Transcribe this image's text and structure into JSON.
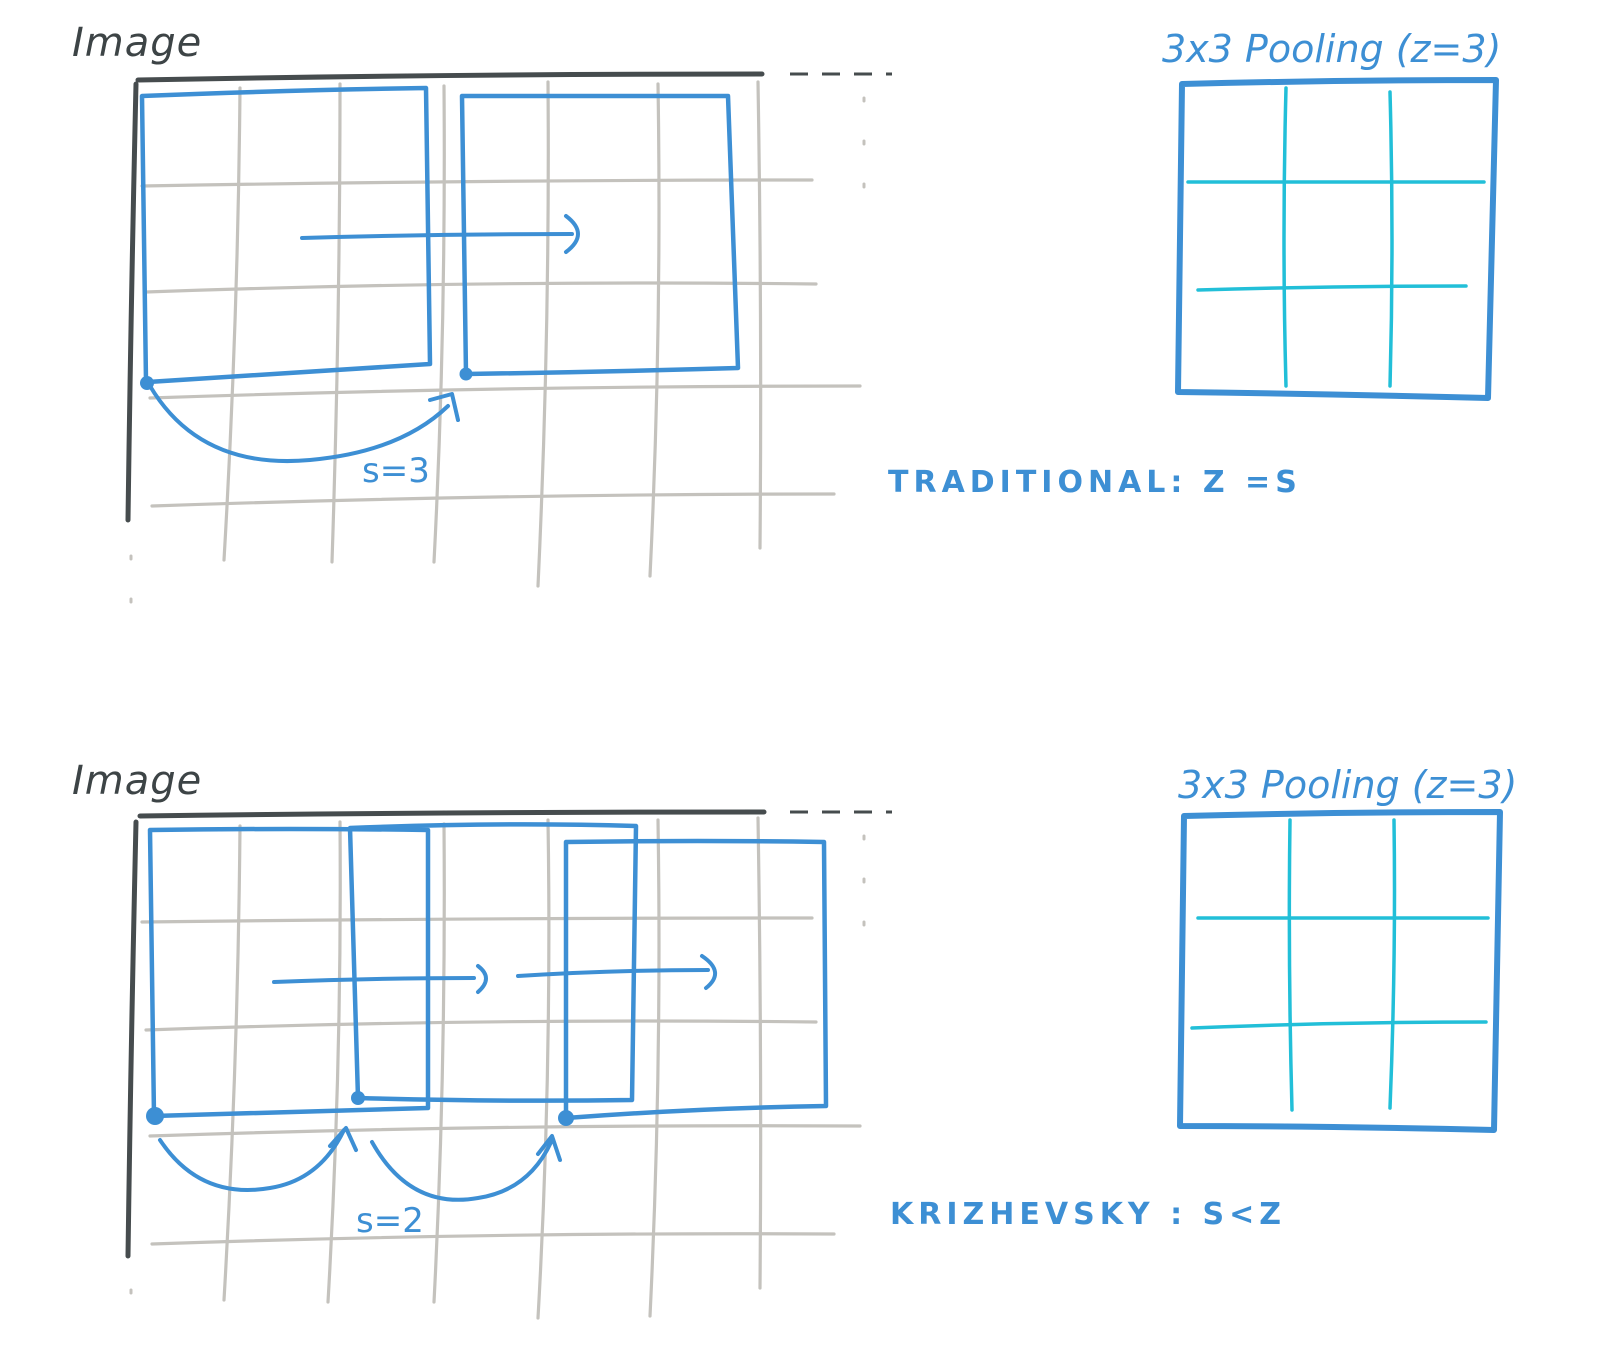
{
  "panels": [
    {
      "id": "top",
      "image_label": "Image",
      "pool_label": "3x3 Pooling (z=3)",
      "stride_label": "s=3",
      "caption": "TRADITIONAL:  Z =S",
      "stride": 3,
      "pool_size": 3,
      "window_count": 2
    },
    {
      "id": "bottom",
      "image_label": "Image",
      "pool_label": "3x3 Pooling (z=3)",
      "stride_label": "s=2",
      "caption": "KRIZHEVSKY :  S<Z",
      "stride": 2,
      "pool_size": 3,
      "window_count": 3
    }
  ],
  "colors": {
    "window": "#3d8fd4",
    "pool_grid": "#22bfd8",
    "image_grid": "#c4c2bd",
    "axis": "#464c4e"
  }
}
